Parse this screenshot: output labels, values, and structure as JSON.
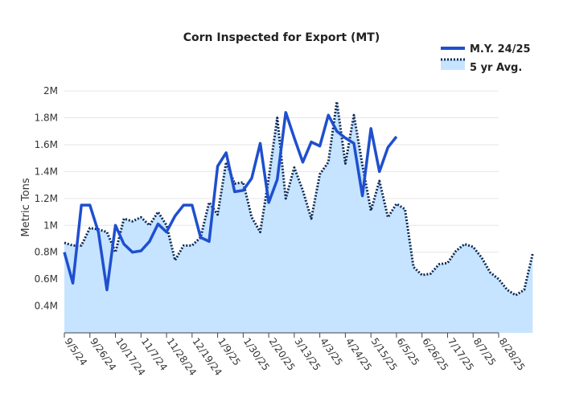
{
  "chart_data": {
    "type": "line",
    "title": "Corn Inspected for Export  (MT)",
    "xlabel": "",
    "ylabel": "Metric Tons",
    "ylim": [
      200000,
      2150000
    ],
    "y_ticks": [
      400000,
      600000,
      800000,
      1000000,
      1200000,
      1400000,
      1600000,
      1800000,
      2000000
    ],
    "y_tick_labels": [
      "0.4M",
      "0.6M",
      "0.8M",
      "1M",
      "1.2M",
      "1.4M",
      "1.6M",
      "1.8M",
      "2M"
    ],
    "x_tick_labels": [
      "9/5/24",
      "9/26/24",
      "10/17/24",
      "11/7/24",
      "11/28/24",
      "12/19/24",
      "1/9/25",
      "1/30/25",
      "2/20/25",
      "3/13/25",
      "4/3/25",
      "4/24/25",
      "5/15/25",
      "6/5/25",
      "6/26/25",
      "7/17/25",
      "8/7/25",
      "8/28/25"
    ],
    "grid": true,
    "legend_position": "top-right",
    "series": [
      {
        "name": "M.Y. 24/25",
        "style": "solid",
        "color": "#1f4fcf",
        "values": [
          800000,
          570000,
          1150000,
          1150000,
          950000,
          520000,
          1000000,
          860000,
          800000,
          810000,
          880000,
          1010000,
          950000,
          1070000,
          1150000,
          1150000,
          910000,
          880000,
          1440000,
          1540000,
          1250000,
          1260000,
          1350000,
          1610000,
          1170000,
          1340000,
          1840000,
          1650000,
          1470000,
          1620000,
          1590000,
          1820000,
          1700000,
          1650000,
          1610000,
          1220000,
          1720000,
          1400000,
          1580000,
          1660000
        ]
      },
      {
        "name": "5 yr Avg.",
        "style": "dotted",
        "color": "#0f2a55",
        "fill": "#c6e4ff",
        "values": [
          870000,
          850000,
          850000,
          980000,
          970000,
          950000,
          800000,
          1050000,
          1030000,
          1060000,
          1000000,
          1100000,
          1000000,
          740000,
          850000,
          850000,
          910000,
          1170000,
          1080000,
          1470000,
          1310000,
          1320000,
          1060000,
          950000,
          1350000,
          1800000,
          1200000,
          1430000,
          1260000,
          1050000,
          1380000,
          1470000,
          1920000,
          1460000,
          1820000,
          1450000,
          1110000,
          1330000,
          1060000,
          1160000,
          1120000,
          690000,
          630000,
          640000,
          710000,
          720000,
          810000,
          860000,
          840000,
          760000,
          650000,
          600000,
          520000,
          480000,
          520000,
          790000
        ]
      }
    ]
  }
}
